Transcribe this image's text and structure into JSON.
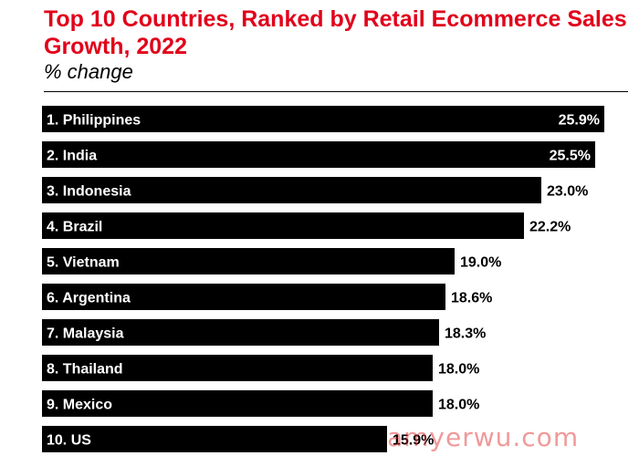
{
  "colors": {
    "title": "#e1001a",
    "bar": "#000000",
    "inside_label": "#ffffff",
    "outside_label": "#000000",
    "divider": "#000000",
    "watermark": "#e02020"
  },
  "watermark": "amyerwu.com",
  "chart_data": {
    "type": "bar",
    "orientation": "horizontal",
    "title": "Top 10 Countries, Ranked by Retail Ecommerce Sales Growth, 2022",
    "subtitle": "% change",
    "categories": [
      "1. Philippines",
      "2. India",
      "3. Indonesia",
      "4. Brazil",
      "5. Vietnam",
      "6. Argentina",
      "7. Malaysia",
      "8. Thailand",
      "9. Mexico",
      "10. US"
    ],
    "values": [
      25.9,
      25.5,
      23.0,
      22.2,
      19.0,
      18.6,
      18.3,
      18.0,
      18.0,
      15.9
    ],
    "value_labels": [
      "25.9%",
      "25.5%",
      "23.0%",
      "22.2%",
      "19.0%",
      "18.6%",
      "18.3%",
      "18.0%",
      "18.0%",
      "15.9%"
    ],
    "xlim": [
      0,
      25.9
    ],
    "grid": false,
    "legend": "none"
  }
}
